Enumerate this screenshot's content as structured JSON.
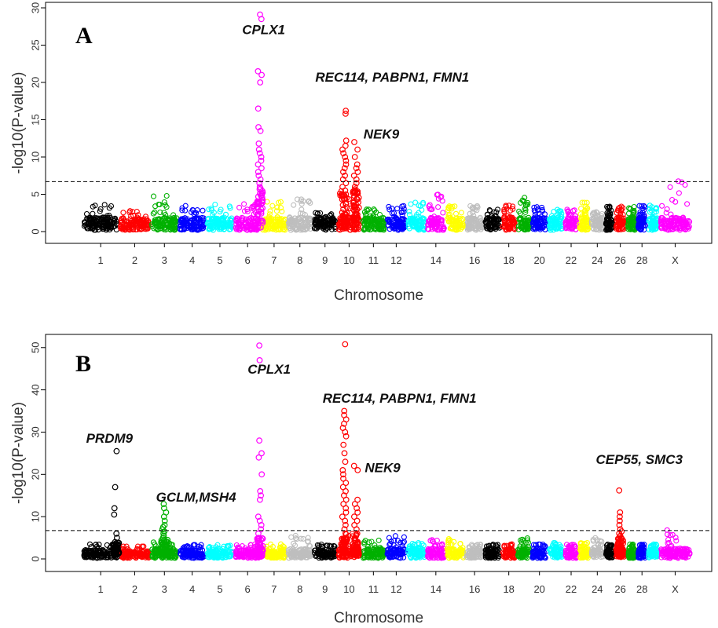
{
  "chart_data": [
    {
      "type": "scatter",
      "panel": "A",
      "xlabel": "Chromosome",
      "ylabel": "-log10(P-value)",
      "ylim": [
        0,
        30
      ],
      "yticks": [
        0,
        5,
        10,
        15,
        20,
        25,
        30
      ],
      "threshold": 6.7,
      "chromosomes": [
        "1",
        "2",
        "3",
        "4",
        "5",
        "6",
        "7",
        "8",
        "9",
        "10",
        "11",
        "12",
        "13",
        "14",
        "15",
        "16",
        "17",
        "18",
        "19",
        "20",
        "21",
        "22",
        "23",
        "24",
        "25",
        "26",
        "27",
        "28",
        "29",
        "X"
      ],
      "xtick_labels": [
        "1",
        "2",
        "3",
        "4",
        "5",
        "6",
        "7",
        "8",
        "9",
        "10",
        "11",
        "12",
        "14",
        "16",
        "18",
        "20",
        "22",
        "24",
        "26",
        "28",
        "X"
      ],
      "xtick_chromosomes": [
        "1",
        "2",
        "3",
        "4",
        "5",
        "6",
        "7",
        "8",
        "9",
        "10",
        "11",
        "12",
        "14",
        "16",
        "18",
        "20",
        "22",
        "24",
        "26",
        "28",
        "X"
      ],
      "colors": [
        "#000000",
        "#ff0000",
        "#00b000",
        "#0000ff",
        "#00ffff",
        "#ff00ff",
        "#ffff00",
        "#bebebe"
      ],
      "background_max": [
        3.8,
        2.8,
        5.0,
        3.5,
        3.8,
        3.9,
        4.0,
        4.5,
        3.0,
        6.0,
        3.0,
        3.5,
        4.0,
        5.0,
        3.5,
        3.5,
        3.0,
        3.5,
        5.0,
        3.5,
        3.0,
        3.0,
        4.8,
        3.0,
        3.5,
        3.5,
        3.5,
        3.5,
        3.5,
        6.8
      ],
      "peaks": [
        {
          "chromosome": "6",
          "pos": 0.95,
          "values": [
            29.1,
            28.5,
            21.5,
            21.0,
            20.0,
            16.5,
            14.0,
            13.5,
            11.8,
            11.0,
            10.5,
            10.0,
            9.5,
            9.0,
            8.5,
            8.0,
            7.5,
            7.0,
            6.5,
            6.0
          ]
        },
        {
          "chromosome": "10",
          "pos": 0.3,
          "values": [
            16.2,
            15.8,
            12.2,
            11.5,
            11.0,
            10.5,
            10.0,
            9.5,
            9.0,
            8.5,
            8.0,
            7.5,
            7.0,
            6.5,
            6.0,
            5.5,
            5.0
          ]
        },
        {
          "chromosome": "10",
          "pos": 0.78,
          "values": [
            12.0,
            11.0,
            10.0,
            9.0,
            8.5,
            8.0,
            7.5,
            7.0,
            6.5,
            6.0,
            5.5
          ]
        }
      ],
      "annotations": [
        {
          "text": "CPLX1",
          "chromosome": "6",
          "pos": 0.3,
          "y": 26.5
        },
        {
          "text": "REC114, PABPN1, FMN1",
          "chromosome": "9",
          "pos": 0.1,
          "y": 20.1
        },
        {
          "text": "NEK9",
          "chromosome": "11",
          "pos": 0.1,
          "y": 12.5
        }
      ]
    },
    {
      "type": "scatter",
      "panel": "B",
      "xlabel": "Chromosome",
      "ylabel": "-log10(P-value)",
      "ylim": [
        0,
        52
      ],
      "yticks": [
        0,
        10,
        20,
        30,
        40,
        50
      ],
      "threshold": 6.7,
      "chromosomes": [
        "1",
        "2",
        "3",
        "4",
        "5",
        "6",
        "7",
        "8",
        "9",
        "10",
        "11",
        "12",
        "13",
        "14",
        "15",
        "16",
        "17",
        "18",
        "19",
        "20",
        "21",
        "22",
        "23",
        "24",
        "25",
        "26",
        "27",
        "28",
        "29",
        "X"
      ],
      "xtick_labels": [
        "1",
        "2",
        "3",
        "4",
        "5",
        "6",
        "7",
        "8",
        "9",
        "10",
        "11",
        "12",
        "14",
        "16",
        "18",
        "20",
        "22",
        "24",
        "26",
        "28",
        "X"
      ],
      "xtick_chromosomes": [
        "1",
        "2",
        "3",
        "4",
        "5",
        "6",
        "7",
        "8",
        "9",
        "10",
        "11",
        "12",
        "14",
        "16",
        "18",
        "20",
        "22",
        "24",
        "26",
        "28",
        "X"
      ],
      "colors": [
        "#000000",
        "#ff0000",
        "#00b000",
        "#0000ff",
        "#00ffff",
        "#ff00ff",
        "#ffff00",
        "#bebebe"
      ],
      "background_max": [
        3.5,
        3.0,
        4.0,
        3.5,
        3.5,
        3.5,
        3.5,
        5.5,
        3.5,
        6.0,
        4.5,
        5.5,
        4.0,
        4.5,
        5.0,
        3.5,
        3.5,
        3.5,
        5.0,
        3.5,
        4.0,
        3.5,
        4.0,
        5.0,
        3.5,
        6.0,
        3.5,
        3.5,
        3.5,
        7.5
      ],
      "peaks": [
        {
          "chromosome": "1",
          "pos": 0.92,
          "values": [
            25.5,
            17.0,
            12.0,
            10.5,
            6.0,
            5.0,
            4.0
          ]
        },
        {
          "chromosome": "3",
          "pos": 0.5,
          "values": [
            13.0,
            12.0,
            11.0,
            10.0,
            9.0,
            8.0,
            7.5,
            7.0,
            6.5,
            6.0,
            5.5,
            5.0,
            4.5
          ]
        },
        {
          "chromosome": "6",
          "pos": 0.95,
          "values": [
            50.5,
            47.0,
            28.0,
            25.0,
            24.0,
            20.0,
            16.0,
            15.0,
            14.0,
            10.0,
            9.0,
            8.0,
            7.0,
            6.0,
            5.0
          ]
        },
        {
          "chromosome": "10",
          "pos": 0.3,
          "values": [
            50.8,
            35.0,
            34.0,
            33.0,
            32.0,
            31.0,
            30.0,
            29.0,
            27.0,
            25.0,
            23.0,
            21.0,
            20.0,
            19.0,
            18.0,
            17.0,
            16.0,
            15.0,
            14.0,
            13.0,
            12.0,
            11.0,
            10.0,
            9.0,
            8.0,
            7.0,
            6.0,
            5.0
          ]
        },
        {
          "chromosome": "10",
          "pos": 0.78,
          "values": [
            22.0,
            21.0,
            14.0,
            13.0,
            12.0,
            11.0,
            10.0,
            9.0,
            8.0,
            7.0,
            6.0,
            5.0
          ]
        },
        {
          "chromosome": "26",
          "pos": 0.5,
          "values": [
            16.2,
            11.0,
            10.0,
            9.0,
            8.0,
            7.0,
            6.5,
            6.0,
            5.0
          ]
        }
      ],
      "annotations": [
        {
          "text": "PRDM9",
          "chromosome": "1",
          "pos": 0.1,
          "y": 27.5
        },
        {
          "text": "GCLM,MSH4",
          "chromosome": "3",
          "pos": 0.2,
          "y": 13.6
        },
        {
          "text": "CPLX1",
          "chromosome": "6",
          "pos": 0.5,
          "y": 43.8
        },
        {
          "text": "REC114, PABPN1, FMN1",
          "chromosome": "9",
          "pos": 0.4,
          "y": 37.0
        },
        {
          "text": "NEK9",
          "chromosome": "11",
          "pos": 0.15,
          "y": 20.5
        },
        {
          "text": "CEP55, SMC3",
          "chromosome": "24",
          "pos": 0.4,
          "y": 22.5
        }
      ]
    }
  ]
}
